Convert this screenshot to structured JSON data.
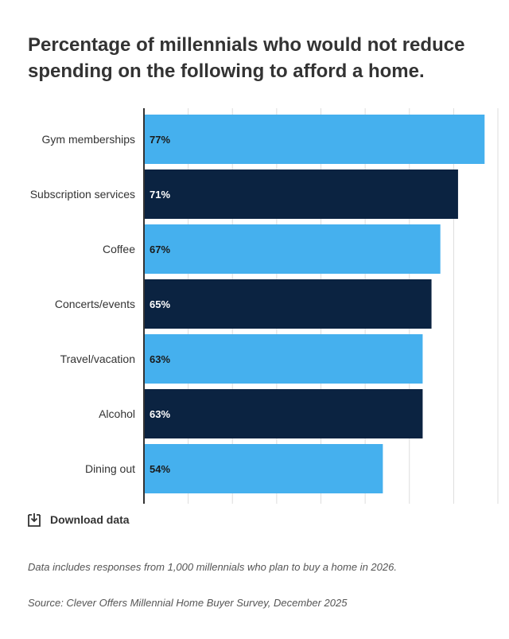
{
  "chart_data": {
    "type": "bar",
    "orientation": "horizontal",
    "title": "Percentage of millennials who would not reduce spending on the following to afford a home.",
    "categories": [
      "Gym memberships",
      "Subscription services",
      "Coffee",
      "Concerts/events",
      "Travel/vacation",
      "Alcohol",
      "Dining out"
    ],
    "values": [
      77,
      71,
      67,
      65,
      63,
      63,
      54
    ],
    "data_labels": [
      "77%",
      "71%",
      "67%",
      "65%",
      "63%",
      "63%",
      "54%"
    ],
    "xlim": [
      0,
      80
    ],
    "grid": true,
    "bar_colors": [
      "#45b0ee",
      "#0b2341",
      "#45b0ee",
      "#0b2341",
      "#45b0ee",
      "#0b2341",
      "#45b0ee"
    ],
    "label_colors": [
      "#1a1a1a",
      "#ffffff",
      "#1a1a1a",
      "#ffffff",
      "#1a1a1a",
      "#ffffff",
      "#1a1a1a"
    ]
  },
  "download": {
    "label": "Download data",
    "icon": "download-icon"
  },
  "notes": {
    "data_note": "Data includes responses from 1,000 millennials who plan to buy a home in 2026.",
    "source": "Source: Clever Offers Millennial Home Buyer Survey, December 2025"
  },
  "colors": {
    "axis": "#333333",
    "gridline": "#dddddd",
    "text": "#333333"
  }
}
